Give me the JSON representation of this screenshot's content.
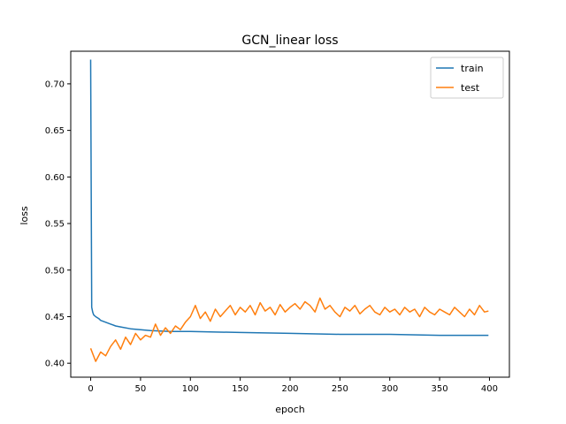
{
  "chart_data": {
    "type": "line",
    "title": "GCN_linear loss",
    "xlabel": "epoch",
    "ylabel": "loss",
    "xlim": [
      -20,
      420
    ],
    "ylim": [
      0.385,
      0.735
    ],
    "xticks": [
      0,
      50,
      100,
      150,
      200,
      250,
      300,
      350,
      400
    ],
    "yticks": [
      0.4,
      0.45,
      0.5,
      0.55,
      0.6,
      0.65,
      0.7
    ],
    "grid": false,
    "legend": "top-right",
    "series": [
      {
        "name": "train",
        "color": "#1f77b4",
        "x": [
          0,
          1,
          2,
          3,
          5,
          8,
          10,
          15,
          20,
          25,
          30,
          40,
          50,
          60,
          80,
          100,
          150,
          200,
          250,
          300,
          350,
          399
        ],
        "y": [
          0.726,
          0.46,
          0.455,
          0.452,
          0.45,
          0.448,
          0.446,
          0.444,
          0.442,
          0.44,
          0.439,
          0.437,
          0.436,
          0.435,
          0.434,
          0.434,
          0.433,
          0.432,
          0.431,
          0.431,
          0.43,
          0.43
        ]
      },
      {
        "name": "test",
        "color": "#ff7f0e",
        "x": [
          0,
          5,
          10,
          15,
          20,
          25,
          30,
          35,
          40,
          45,
          50,
          55,
          60,
          65,
          70,
          75,
          80,
          85,
          90,
          95,
          100,
          105,
          110,
          115,
          120,
          125,
          130,
          135,
          140,
          145,
          150,
          155,
          160,
          165,
          170,
          175,
          180,
          185,
          190,
          195,
          200,
          205,
          210,
          215,
          220,
          225,
          230,
          235,
          240,
          245,
          250,
          255,
          260,
          265,
          270,
          275,
          280,
          285,
          290,
          295,
          300,
          305,
          310,
          315,
          320,
          325,
          330,
          335,
          340,
          345,
          350,
          355,
          360,
          365,
          370,
          375,
          380,
          385,
          390,
          395,
          399
        ],
        "y": [
          0.416,
          0.402,
          0.412,
          0.408,
          0.418,
          0.425,
          0.415,
          0.428,
          0.42,
          0.432,
          0.425,
          0.43,
          0.428,
          0.442,
          0.43,
          0.438,
          0.432,
          0.44,
          0.436,
          0.444,
          0.45,
          0.462,
          0.448,
          0.455,
          0.445,
          0.458,
          0.45,
          0.456,
          0.462,
          0.452,
          0.46,
          0.455,
          0.462,
          0.452,
          0.465,
          0.456,
          0.46,
          0.452,
          0.463,
          0.455,
          0.46,
          0.464,
          0.458,
          0.466,
          0.462,
          0.455,
          0.47,
          0.458,
          0.462,
          0.455,
          0.45,
          0.46,
          0.456,
          0.462,
          0.453,
          0.458,
          0.462,
          0.455,
          0.452,
          0.46,
          0.455,
          0.458,
          0.452,
          0.46,
          0.455,
          0.458,
          0.45,
          0.46,
          0.455,
          0.452,
          0.458,
          0.455,
          0.452,
          0.46,
          0.455,
          0.45,
          0.458,
          0.452,
          0.462,
          0.455,
          0.456
        ]
      }
    ]
  }
}
